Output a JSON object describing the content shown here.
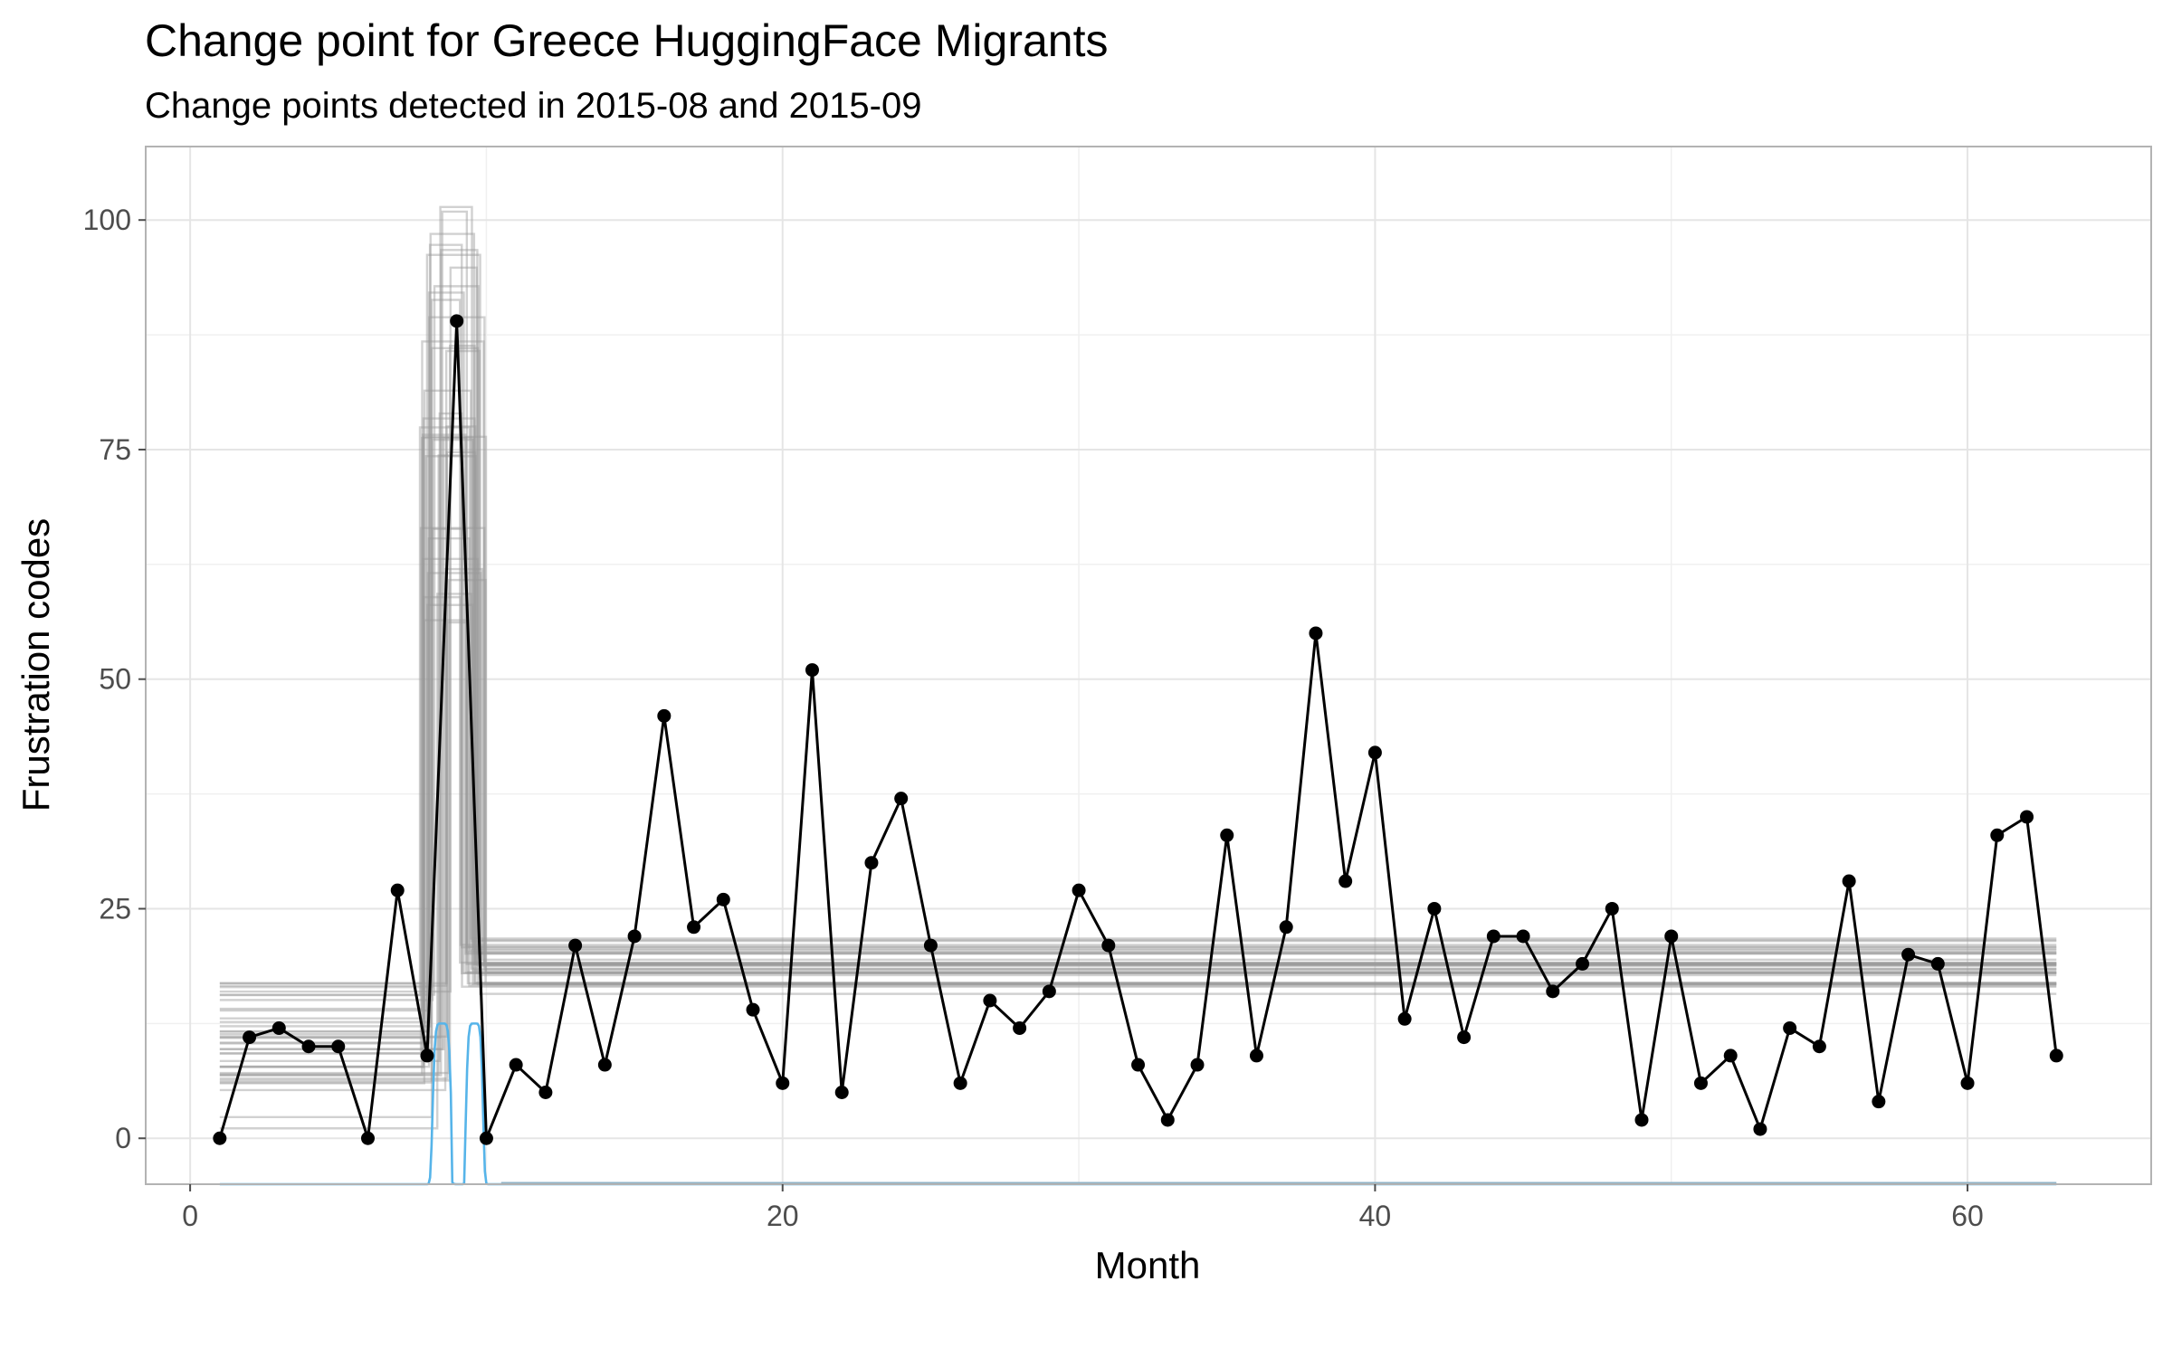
{
  "chart_data": {
    "type": "line",
    "title": "Change point for Greece HuggingFace Migrants",
    "subtitle": "Change points detected in 2015-08 and 2015-09",
    "xlabel": "Month",
    "ylabel": "Frustration codes",
    "xlim": [
      -1.5,
      66.2
    ],
    "ylim": [
      -5,
      108
    ],
    "x_ticks": [
      0,
      20,
      40,
      60
    ],
    "x_tick_labels": [
      "0",
      "20",
      "40",
      "60"
    ],
    "y_ticks": [
      0,
      25,
      50,
      75,
      100
    ],
    "y_tick_labels": [
      "0",
      "25",
      "50",
      "75",
      "100"
    ],
    "grid": true,
    "series": [
      {
        "x": [
          1,
          2,
          3,
          4,
          5,
          6,
          7,
          8,
          9,
          10,
          11,
          12,
          13,
          14,
          15,
          16,
          17,
          18,
          19,
          20,
          21,
          22,
          23,
          24,
          25,
          26,
          27,
          28,
          29,
          30,
          31,
          32,
          33,
          34,
          35,
          36,
          37,
          38,
          39,
          40,
          41,
          42,
          43,
          44,
          45,
          46,
          47,
          48,
          49,
          50,
          51,
          52,
          53,
          54,
          55,
          56,
          57,
          58,
          59,
          60,
          61,
          62,
          63
        ],
        "values": [
          0,
          11,
          12,
          10,
          10,
          0,
          27,
          9,
          89,
          0,
          8,
          5,
          21,
          8,
          22,
          46,
          23,
          26,
          14,
          6,
          51,
          5,
          30,
          37,
          21,
          6,
          15,
          12,
          16,
          27,
          21,
          8,
          2,
          8,
          33,
          9,
          23,
          55,
          28,
          42,
          13,
          25,
          11,
          22,
          22,
          16,
          19,
          25,
          2,
          22,
          6,
          9,
          1,
          12,
          10,
          28,
          4,
          20,
          19,
          6,
          33,
          35,
          9
        ]
      }
    ],
    "colors": {
      "data_line": "#000000",
      "posterior_samples": "#9a9a9a",
      "changepoint_density": "#56b4e9",
      "grid": "#e5e5e5",
      "panel_border": "#b3b3b3"
    }
  }
}
